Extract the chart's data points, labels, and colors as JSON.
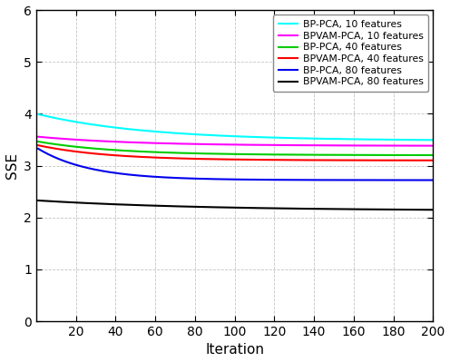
{
  "title": "",
  "xlabel": "Iteration",
  "ylabel": "SSE",
  "xlim": [
    0,
    200
  ],
  "ylim": [
    0,
    6
  ],
  "xticks": [
    20,
    40,
    60,
    80,
    100,
    120,
    140,
    160,
    180,
    200
  ],
  "yticks": [
    0,
    1,
    2,
    3,
    4,
    5,
    6
  ],
  "series": [
    {
      "label": "BP-PCA, 10 features",
      "color": "#00FFFF",
      "start": 4.0,
      "end": 3.48,
      "speed": 0.018
    },
    {
      "label": "BPVAM-PCA, 10 features",
      "color": "#FF00FF",
      "start": 3.56,
      "end": 3.38,
      "speed": 0.02
    },
    {
      "label": "BP-PCA, 40 features",
      "color": "#00CC00",
      "start": 3.47,
      "end": 3.2,
      "speed": 0.025
    },
    {
      "label": "BPVAM-PCA, 40 features",
      "color": "#FF0000",
      "start": 3.4,
      "end": 3.1,
      "speed": 0.028
    },
    {
      "label": "BP-PCA, 80 features",
      "color": "#0000EE",
      "start": 3.35,
      "end": 2.72,
      "speed": 0.038
    },
    {
      "label": "BPVAM-PCA, 80 features",
      "color": "#000000",
      "start": 2.33,
      "end": 2.13,
      "speed": 0.012
    }
  ],
  "figsize": [
    4.96,
    3.99
  ],
  "dpi": 100,
  "bg_color": "#ffffff",
  "grid_color": "#aaaaaa",
  "grid_style": "--",
  "linewidth": 1.5
}
